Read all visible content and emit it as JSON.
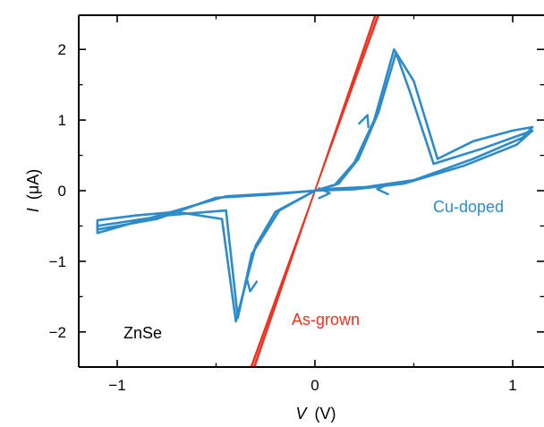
{
  "chart_data": {
    "type": "line",
    "title": "",
    "xlabel_var": "V",
    "xlabel_unit": "(V)",
    "ylabel_var": "I",
    "ylabel_unit": "(μA)",
    "xlim": [
      -1.15,
      1.15
    ],
    "ylim": [
      -2.5,
      2.5
    ],
    "x_ticks": [
      -1,
      0,
      1
    ],
    "x_tick_labels": [
      "−1",
      "0",
      "1"
    ],
    "y_ticks": [
      -2,
      -1,
      0,
      1,
      2
    ],
    "y_tick_labels": [
      "−2",
      "−1",
      "0",
      "1",
      "2"
    ],
    "grid": false,
    "annotations": {
      "sample": "ZnSe",
      "as_grown": "As-grown",
      "cu_doped": "Cu-doped"
    },
    "colors": {
      "as_grown": "#ee3322",
      "cu_doped": "#2e8bc9"
    },
    "series": [
      {
        "key": "as_grown",
        "color": "#ee3322",
        "loops": [
          [
            [
              -0.32,
              -2.5
            ],
            [
              0.0,
              0.0
            ],
            [
              0.31,
              2.5
            ]
          ],
          [
            [
              -0.31,
              -2.5
            ],
            [
              0.0,
              0.0
            ],
            [
              0.32,
              2.5
            ]
          ],
          [
            [
              -0.305,
              -2.5
            ],
            [
              0.0,
              0.0
            ],
            [
              0.325,
              2.5
            ]
          ],
          [
            [
              -0.325,
              -2.5
            ],
            [
              0.0,
              0.0
            ],
            [
              0.305,
              2.5
            ]
          ]
        ]
      },
      {
        "key": "cu_doped",
        "color": "#2e8bc9",
        "loops": [
          [
            [
              0,
              0
            ],
            [
              0.1,
              0.08
            ],
            [
              0.2,
              0.4
            ],
            [
              0.3,
              1.0
            ],
            [
              0.4,
              2.0
            ],
            [
              0.5,
              1.55
            ],
            [
              0.62,
              0.45
            ],
            [
              0.8,
              0.7
            ],
            [
              1.0,
              0.85
            ],
            [
              1.1,
              0.9
            ],
            [
              1.05,
              0.75
            ],
            [
              0.8,
              0.45
            ],
            [
              0.5,
              0.15
            ],
            [
              0.25,
              0.05
            ],
            [
              0.1,
              0.03
            ],
            [
              0,
              0
            ],
            [
              -0.2,
              -0.3
            ],
            [
              -0.3,
              -0.78
            ],
            [
              -0.4,
              -1.85
            ],
            [
              -0.47,
              -0.4
            ],
            [
              -0.7,
              -0.3
            ],
            [
              -0.9,
              -0.35
            ],
            [
              -1.1,
              -0.42
            ],
            [
              -1.1,
              -0.55
            ],
            [
              -0.8,
              -0.4
            ],
            [
              -0.5,
              -0.1
            ],
            [
              -0.2,
              -0.05
            ],
            [
              0,
              0
            ]
          ],
          [
            [
              0,
              0
            ],
            [
              0.12,
              0.1
            ],
            [
              0.22,
              0.45
            ],
            [
              0.32,
              1.1
            ],
            [
              0.41,
              1.95
            ],
            [
              0.48,
              1.4
            ],
            [
              0.6,
              0.38
            ],
            [
              0.85,
              0.6
            ],
            [
              1.1,
              0.85
            ],
            [
              1.02,
              0.65
            ],
            [
              0.75,
              0.35
            ],
            [
              0.45,
              0.1
            ],
            [
              0.2,
              0.02
            ],
            [
              0,
              0
            ],
            [
              -0.18,
              -0.28
            ],
            [
              -0.32,
              -0.9
            ],
            [
              -0.39,
              -1.8
            ],
            [
              -0.45,
              -0.28
            ],
            [
              -0.75,
              -0.35
            ],
            [
              -1.1,
              -0.5
            ],
            [
              -1.1,
              -0.6
            ],
            [
              -0.75,
              -0.32
            ],
            [
              -0.45,
              -0.08
            ],
            [
              -0.15,
              -0.03
            ],
            [
              0,
              0
            ]
          ]
        ],
        "arrows": [
          {
            "x": 0.03,
            "y": -0.035,
            "dir": "right"
          },
          {
            "x": 0.25,
            "y": 0.95,
            "dir": "up"
          },
          {
            "x": 0.36,
            "y": 0.02,
            "dir": "left"
          },
          {
            "x": -0.32,
            "y": -1.3,
            "dir": "down"
          }
        ]
      }
    ]
  }
}
